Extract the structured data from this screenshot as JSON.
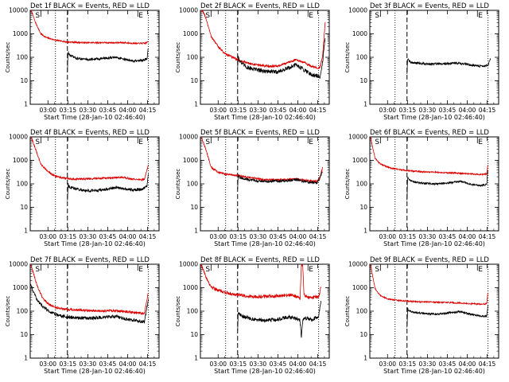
{
  "chart_data": [
    {
      "type": "line",
      "title": "Det 1f BLACK = Events, RED = LLD",
      "xlabel": "Start Time (28-Jan-10 02:46:40)",
      "ylabel": "Counts/sec",
      "yscale": "log",
      "ylim": [
        1,
        10000
      ],
      "yticks": [
        "1",
        "10",
        "100",
        "1000",
        "10000"
      ],
      "xticks": [
        "03:00",
        "03:15",
        "03:30",
        "03:45",
        "04:00",
        "04:15"
      ],
      "xlim_minutes": [
        0,
        97
      ],
      "markers": {
        "S": 8,
        "E": 81
      },
      "lines": {
        "dotted": [
          19,
          89
        ],
        "dashed": 28
      },
      "series": [
        {
          "color": "#000000",
          "noise": 0.05,
          "x": [
            28,
            28.5,
            29,
            30,
            35,
            45,
            55,
            65,
            72,
            78,
            84,
            88,
            89
          ],
          "y": [
            25,
            180,
            140,
            120,
            90,
            80,
            90,
            100,
            80,
            68,
            72,
            90,
            300
          ]
        },
        {
          "color": "#dd0000",
          "noise": 0.03,
          "x": [
            0,
            4,
            8,
            12,
            18,
            22,
            28,
            40,
            55,
            70,
            80,
            87,
            89
          ],
          "y": [
            13000,
            3000,
            1000,
            700,
            560,
            500,
            450,
            420,
            420,
            420,
            390,
            400,
            480
          ]
        }
      ]
    },
    {
      "type": "line",
      "title": "Det 2f BLACK = Events, RED = LLD",
      "xlabel": "Start Time (28-Jan-10 02:46:40)",
      "ylabel": "Counts/sec",
      "yscale": "log",
      "ylim": [
        1,
        10000
      ],
      "yticks": [
        "1",
        "10",
        "100",
        "1000",
        "10000"
      ],
      "xticks": [
        "03:00",
        "03:15",
        "03:30",
        "03:45",
        "04:00",
        "04:15"
      ],
      "xlim_minutes": [
        0,
        97
      ],
      "markers": {
        "S": 8,
        "E": 81
      },
      "lines": {
        "dotted": [
          19,
          89
        ],
        "dashed": 28
      },
      "series": [
        {
          "color": "#000000",
          "noise": 0.09,
          "x": [
            28,
            28.5,
            29,
            31,
            35,
            42,
            50,
            58,
            66,
            72,
            78,
            84,
            90,
            92,
            94
          ],
          "y": [
            40,
            110,
            90,
            55,
            38,
            30,
            25,
            24,
            34,
            48,
            30,
            18,
            15,
            60,
            800
          ]
        },
        {
          "color": "#dd0000",
          "noise": 0.05,
          "x": [
            0,
            4,
            8,
            13,
            18,
            24,
            30,
            40,
            50,
            58,
            66,
            72,
            78,
            84,
            90,
            92,
            94
          ],
          "y": [
            13000,
            5000,
            800,
            300,
            150,
            100,
            70,
            50,
            42,
            42,
            60,
            80,
            60,
            40,
            35,
            120,
            3500
          ]
        }
      ]
    },
    {
      "type": "line",
      "title": "Det 3f BLACK = Events, RED = LLD",
      "xlabel": "Start Time (28-Jan-10 02:46:40)",
      "ylabel": "Counts/sec",
      "yscale": "log",
      "ylim": [
        1,
        10000
      ],
      "yticks": [
        "1",
        "10",
        "100",
        "1000",
        "10000"
      ],
      "xticks": [
        "03:00",
        "03:15",
        "03:30",
        "03:45",
        "04:00",
        "04:15"
      ],
      "xlim_minutes": [
        0,
        97
      ],
      "markers": {
        "S": 8,
        "E": 81
      },
      "lines": {
        "dotted": [
          19,
          89
        ],
        "dashed": 28
      },
      "series": [
        {
          "color": "#000000",
          "noise": 0.05,
          "x": [
            28,
            28.5,
            29,
            31,
            38,
            45,
            55,
            65,
            72,
            78,
            84,
            89,
            91
          ],
          "y": [
            20,
            90,
            75,
            60,
            55,
            52,
            52,
            58,
            52,
            45,
            42,
            45,
            90
          ]
        }
      ]
    },
    {
      "type": "line",
      "title": "Det 4f BLACK = Events, RED = LLD",
      "xlabel": "Start Time (28-Jan-10 02:46:40)",
      "ylabel": "Counts/sec",
      "yscale": "log",
      "ylim": [
        1,
        10000
      ],
      "yticks": [
        "1",
        "10",
        "100",
        "1000",
        "10000"
      ],
      "xticks": [
        "03:00",
        "03:15",
        "03:30",
        "03:45",
        "04:00",
        "04:15"
      ],
      "xlim_minutes": [
        0,
        97
      ],
      "markers": {
        "S": 8,
        "E": 81
      },
      "lines": {
        "dotted": [
          19,
          89
        ],
        "dashed": 28
      },
      "series": [
        {
          "color": "#000000",
          "noise": 0.06,
          "x": [
            28,
            28.5,
            29,
            32,
            38,
            45,
            55,
            65,
            72,
            78,
            84,
            88,
            89
          ],
          "y": [
            20,
            100,
            80,
            65,
            55,
            50,
            55,
            70,
            62,
            55,
            58,
            80,
            300
          ]
        },
        {
          "color": "#dd0000",
          "noise": 0.04,
          "x": [
            0,
            4,
            8,
            13,
            18,
            24,
            30,
            40,
            55,
            70,
            80,
            86,
            89
          ],
          "y": [
            13000,
            3000,
            700,
            350,
            220,
            180,
            160,
            160,
            175,
            190,
            150,
            150,
            700
          ]
        }
      ]
    },
    {
      "type": "line",
      "title": "Det 5f BLACK = Events, RED = LLD",
      "xlabel": "Start Time (28-Jan-10 02:46:40)",
      "ylabel": "Counts/sec",
      "yscale": "log",
      "ylim": [
        1,
        10000
      ],
      "yticks": [
        "1",
        "10",
        "100",
        "1000",
        "10000"
      ],
      "xticks": [
        "03:00",
        "03:15",
        "03:30",
        "03:45",
        "04:00",
        "04:15"
      ],
      "xlim_minutes": [
        0,
        97
      ],
      "markers": {
        "S": 8,
        "E": 81
      },
      "lines": {
        "dotted": [
          19,
          89
        ],
        "dashed": 28
      },
      "series": [
        {
          "color": "#000000",
          "noise": 0.05,
          "x": [
            28,
            28.5,
            29,
            31,
            38,
            45,
            55,
            65,
            72,
            80,
            88,
            90,
            92
          ],
          "y": [
            60,
            250,
            200,
            170,
            145,
            130,
            130,
            135,
            150,
            120,
            110,
            180,
            350
          ]
        },
        {
          "color": "#dd0000",
          "noise": 0.04,
          "x": [
            0,
            4,
            8,
            14,
            20,
            28,
            38,
            48,
            60,
            72,
            80,
            88,
            90,
            92
          ],
          "y": [
            13000,
            3000,
            500,
            300,
            250,
            230,
            180,
            150,
            150,
            160,
            140,
            130,
            200,
            500
          ]
        }
      ]
    },
    {
      "type": "line",
      "title": "Det 6f BLACK = Events, RED = LLD",
      "xlabel": "Start Time (28-Jan-10 02:46:40)",
      "ylabel": "Counts/sec",
      "yscale": "log",
      "ylim": [
        1,
        10000
      ],
      "yticks": [
        "1",
        "10",
        "100",
        "1000",
        "10000"
      ],
      "xticks": [
        "03:00",
        "03:15",
        "03:30",
        "03:45",
        "04:00",
        "04:15"
      ],
      "xlim_minutes": [
        0,
        97
      ],
      "markers": {
        "S": 8,
        "E": 81
      },
      "lines": {
        "dotted": [
          19,
          89
        ],
        "dashed": 28
      },
      "series": [
        {
          "color": "#000000",
          "noise": 0.04,
          "x": [
            28,
            28.5,
            29,
            32,
            40,
            50,
            60,
            68,
            76,
            84,
            88,
            89
          ],
          "y": [
            20,
            200,
            160,
            125,
            105,
            100,
            110,
            130,
            95,
            85,
            95,
            500
          ]
        },
        {
          "color": "#dd0000",
          "noise": 0.03,
          "x": [
            0,
            4,
            8,
            14,
            20,
            28,
            38,
            50,
            62,
            74,
            84,
            88,
            89
          ],
          "y": [
            13000,
            1200,
            700,
            500,
            420,
            370,
            330,
            310,
            290,
            270,
            250,
            260,
            700
          ]
        }
      ]
    },
    {
      "type": "line",
      "title": "Det 7f BLACK = Events, RED = LLD",
      "xlabel": "Start Time (28-Jan-10 02:46:40)",
      "ylabel": "Counts/sec",
      "yscale": "log",
      "ylim": [
        1,
        10000
      ],
      "yticks": [
        "1",
        "10",
        "100",
        "1000",
        "10000"
      ],
      "xticks": [
        "03:00",
        "03:15",
        "03:30",
        "03:45",
        "04:00",
        "04:15"
      ],
      "xlim_minutes": [
        0,
        97
      ],
      "markers": {
        "S": 8,
        "E": 81
      },
      "lines": {
        "dotted": [
          19,
          89
        ],
        "dashed": 28
      },
      "series": [
        {
          "color": "#000000",
          "noise": 0.07,
          "x": [
            0,
            5,
            10,
            15,
            20,
            25,
            28,
            35,
            45,
            55,
            65,
            72,
            80,
            86,
            89
          ],
          "y": [
            1500,
            300,
            150,
            90,
            70,
            60,
            55,
            52,
            50,
            55,
            60,
            45,
            40,
            35,
            300
          ]
        },
        {
          "color": "#dd0000",
          "noise": 0.05,
          "x": [
            0,
            5,
            10,
            15,
            20,
            28,
            38,
            50,
            62,
            72,
            80,
            86,
            89
          ],
          "y": [
            13000,
            1300,
            300,
            180,
            140,
            120,
            110,
            100,
            105,
            95,
            85,
            80,
            700
          ]
        }
      ]
    },
    {
      "type": "line",
      "title": "Det 8f BLACK = Events, RED = LLD",
      "xlabel": "Start Time (28-Jan-10 02:46:40)",
      "ylabel": "Counts/sec",
      "yscale": "log",
      "ylim": [
        1,
        10000
      ],
      "yticks": [
        "1",
        "10",
        "100",
        "1000",
        "10000"
      ],
      "xticks": [
        "03:00",
        "03:15",
        "03:30",
        "03:45",
        "04:00",
        "04:15"
      ],
      "xlim_minutes": [
        0,
        97
      ],
      "markers": {
        "S": 8,
        "E": 81
      },
      "lines": {
        "dotted": [
          19,
          89
        ],
        "dashed": 28
      },
      "series": [
        {
          "color": "#000000",
          "noise": 0.08,
          "x": [
            28,
            28.5,
            29,
            32,
            40,
            50,
            58,
            66,
            72,
            75,
            76,
            77,
            80,
            84,
            89,
            91
          ],
          "y": [
            15,
            100,
            80,
            60,
            45,
            40,
            45,
            55,
            50,
            40,
            8,
            40,
            50,
            45,
            60,
            350
          ]
        },
        {
          "color": "#dd0000",
          "noise": 0.07,
          "x": [
            0,
            4,
            8,
            14,
            20,
            28,
            38,
            50,
            60,
            68,
            74,
            75,
            76,
            77,
            78,
            82,
            89,
            91
          ],
          "y": [
            12000,
            3000,
            1100,
            750,
            600,
            500,
            420,
            420,
            450,
            480,
            400,
            300,
            10000,
            10000,
            500,
            380,
            400,
            1200
          ]
        }
      ]
    },
    {
      "type": "line",
      "title": "Det 9f BLACK = Events, RED = LLD",
      "xlabel": "Start Time (28-Jan-10 02:46:40)",
      "ylabel": "Counts/sec",
      "yscale": "log",
      "ylim": [
        1,
        10000
      ],
      "yticks": [
        "1",
        "10",
        "100",
        "1000",
        "10000"
      ],
      "xticks": [
        "03:00",
        "03:15",
        "03:30",
        "03:45",
        "04:00",
        "04:15"
      ],
      "xlim_minutes": [
        0,
        97
      ],
      "markers": {
        "S": 8,
        "E": 81
      },
      "lines": {
        "dotted": [
          19,
          89
        ],
        "dashed": 28
      },
      "series": [
        {
          "color": "#000000",
          "noise": 0.04,
          "x": [
            28,
            28.5,
            29,
            32,
            40,
            50,
            60,
            68,
            76,
            84,
            88,
            89
          ],
          "y": [
            20,
            130,
            110,
            90,
            80,
            75,
            85,
            95,
            75,
            60,
            60,
            200
          ]
        },
        {
          "color": "#dd0000",
          "noise": 0.03,
          "x": [
            0,
            4,
            8,
            14,
            20,
            28,
            38,
            50,
            62,
            74,
            84,
            88,
            89
          ],
          "y": [
            13000,
            900,
            450,
            330,
            290,
            270,
            250,
            240,
            230,
            210,
            200,
            210,
            700
          ]
        }
      ]
    }
  ]
}
